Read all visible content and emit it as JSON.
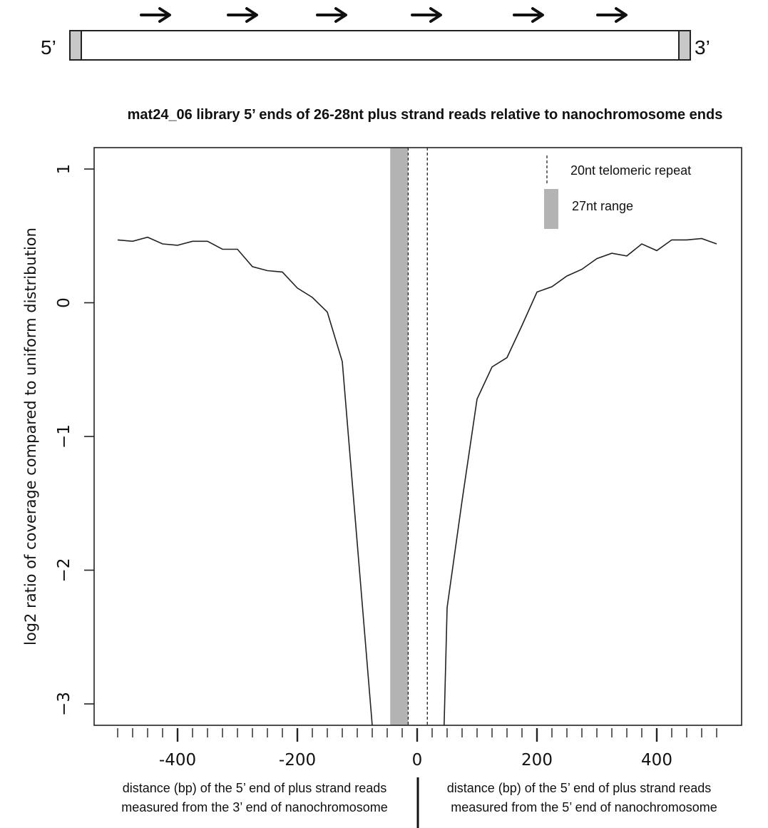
{
  "schematic": {
    "left_label": "5’",
    "right_label": "3’",
    "arrow_count": 6
  },
  "chart_data": {
    "type": "line",
    "title": "mat24_06 library 5’ ends of 26-28nt plus strand reads relative to nanochromosome ends",
    "ylabel": "log2 ratio of coverage compared to uniform distribution",
    "xlabel_left": [
      "distance (bp) of the 5’ end of plus strand reads",
      "measured from the 3’ end of nanochromosome"
    ],
    "xlabel_right": [
      "distance (bp) of the 5’ end of plus strand reads",
      "measured from the 5’ end of nanochromosome"
    ],
    "xlim": [
      -500,
      500
    ],
    "ylim": [
      -3.16,
      1.16
    ],
    "x_ticks": [
      -400,
      -200,
      0,
      200,
      400
    ],
    "x_minor_step": 25,
    "y_ticks": [
      1,
      0,
      -1,
      -2,
      -3
    ],
    "x_tick_labels": [
      "-400",
      "-200",
      "0",
      "200",
      "400"
    ],
    "y_tick_labels": [
      "1",
      "0",
      "−1",
      "−2",
      "−3"
    ],
    "legend": {
      "placement": "top-right",
      "telomeric_label": "20nt telomeric repeat",
      "range_label": "27nt range"
    },
    "bands": {
      "gray_range": [
        -45,
        -15
      ],
      "telomeric_lines": [
        -15,
        17
      ]
    },
    "colors": {
      "line": "#222222",
      "band": "#b3b3b3",
      "axis": "#222222"
    },
    "series": [
      {
        "x": [
          -500,
          -475,
          -450,
          -425,
          -400,
          -375,
          -350,
          -325,
          -300,
          -275,
          -250,
          -225,
          -200,
          -175,
          -150,
          -125,
          -100,
          -75
        ],
        "values": [
          0.47,
          0.46,
          0.49,
          0.44,
          0.43,
          0.46,
          0.46,
          0.4,
          0.4,
          0.27,
          0.24,
          0.23,
          0.11,
          0.04,
          -0.07,
          -0.44,
          -1.8,
          -3.16
        ]
      },
      {
        "x": [
          45,
          50,
          75,
          100,
          125,
          150,
          175,
          200,
          225,
          250,
          275,
          300,
          325,
          350,
          375,
          400,
          425,
          450,
          475,
          500
        ],
        "values": [
          -3.16,
          -2.28,
          -1.48,
          -0.72,
          -0.48,
          -0.41,
          -0.17,
          0.08,
          0.12,
          0.2,
          0.25,
          0.33,
          0.37,
          0.35,
          0.44,
          0.39,
          0.47,
          0.47,
          0.48,
          0.44
        ]
      }
    ]
  }
}
